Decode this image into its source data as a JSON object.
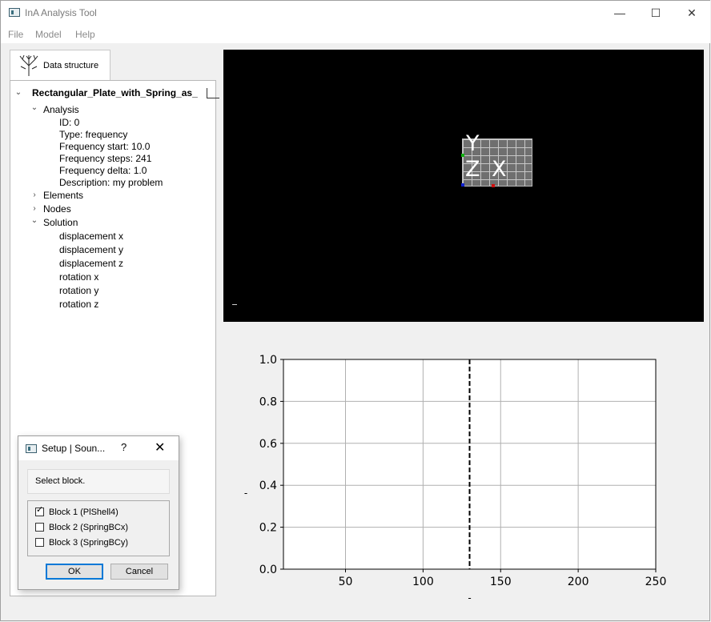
{
  "window": {
    "title": "InA Analysis Tool",
    "minimize_glyph": "—",
    "maximize_glyph": "☐",
    "close_glyph": "✕"
  },
  "menu": [
    "File",
    "Model",
    "Help"
  ],
  "tab": {
    "label": "Data structure",
    "icon": "tree-icon"
  },
  "tree": {
    "root": "Rectangular_Plate_with_Spring_as_",
    "analysis": {
      "label": "Analysis",
      "children": [
        "ID: 0",
        "Type: frequency",
        "Frequency start: 10.0",
        "Frequency steps: 241",
        "Frequency delta: 1.0",
        "Description: my problem"
      ]
    },
    "elements": "Elements",
    "nodes": "Nodes",
    "solution": {
      "label": "Solution",
      "children": [
        "displacement x",
        "displacement y",
        "displacement z",
        "rotation x",
        "rotation y",
        "rotation z"
      ]
    }
  },
  "viewport": {
    "axes": {
      "y": "Y",
      "z": "Z",
      "x": "X"
    },
    "colors": {
      "background": "#000000",
      "x_axis": "#d01010",
      "y_axis": "#10b010",
      "z_axis": "#1020d0"
    }
  },
  "dialog": {
    "title": "Setup | Soun...",
    "help": "?",
    "close": "✕",
    "message": "Select block.",
    "blocks": [
      {
        "label": "Block 1 (PlShell4)",
        "checked": true
      },
      {
        "label": "Block 2 (SpringBCx)",
        "checked": false
      },
      {
        "label": "Block 3 (SpringBCy)",
        "checked": false
      }
    ],
    "ok_label": "OK",
    "cancel_label": "Cancel"
  },
  "chart_data": {
    "type": "line",
    "xlim": [
      10,
      250
    ],
    "ylim": [
      0.0,
      1.0
    ],
    "xticks": [
      "50",
      "100",
      "150",
      "200",
      "250"
    ],
    "yticks": [
      "0.0",
      "0.2",
      "0.4",
      "0.6",
      "0.8",
      "1.0"
    ],
    "xlabel": "-",
    "ylabel": "-",
    "grid": true,
    "vline": {
      "x": 130,
      "style": "dashed",
      "color": "#000000"
    },
    "series": []
  }
}
